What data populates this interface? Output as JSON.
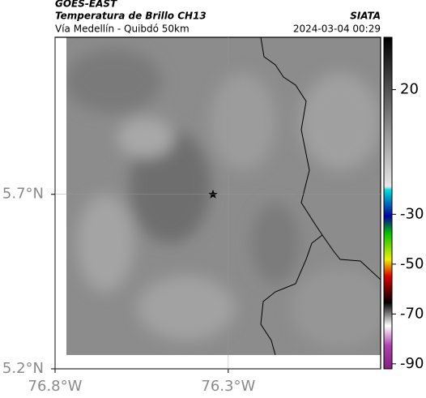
{
  "header": {
    "title": "GOES-EAST",
    "subtitle": "Temperatura de Brillo CH13",
    "location": "Vía Medellín - Quibdó 50km",
    "source": "SIATA",
    "datetime": "2024-03-04 00:29"
  },
  "map": {
    "xlim": [
      -76.8,
      -75.86
    ],
    "ylim": [
      5.2,
      6.15
    ],
    "xticks": [
      {
        "value": -76.8,
        "label": "76.8°W"
      },
      {
        "value": -76.3,
        "label": "76.3°W"
      }
    ],
    "yticks": [
      {
        "value": 5.7,
        "label": "5.7°N"
      },
      {
        "value": 5.2,
        "label": "5.2°N"
      }
    ],
    "grid": true
  },
  "colorbar": {
    "lim": [
      -92,
      41
    ],
    "ticks": [
      20,
      -30,
      -50,
      -70,
      -90
    ]
  }
}
